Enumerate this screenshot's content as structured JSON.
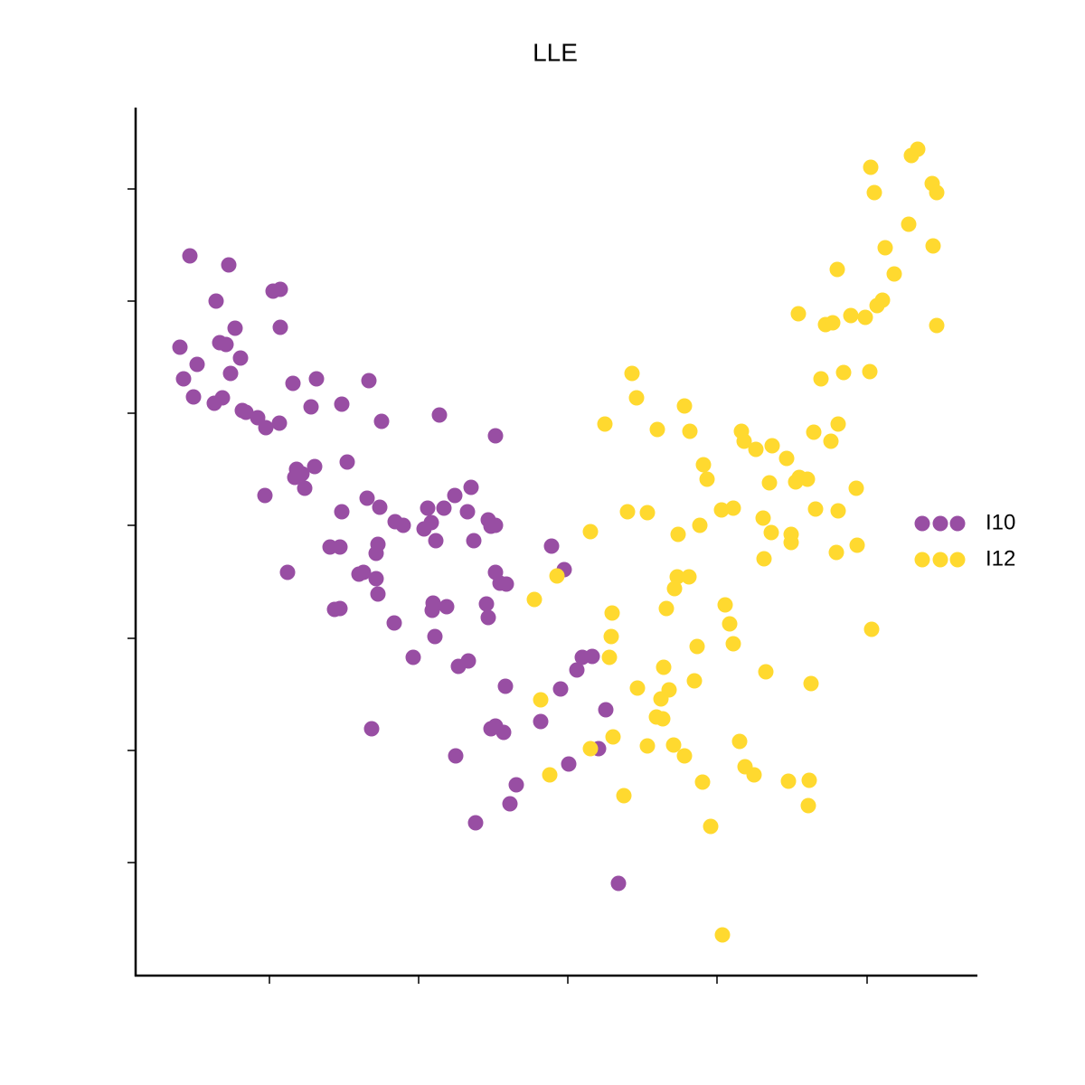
{
  "chart_data": {
    "type": "scatter",
    "title": "LLE",
    "xlim": [
      0,
      930
    ],
    "ylim": [
      0,
      959
    ],
    "xticks": [
      148,
      313,
      478,
      643,
      809
    ],
    "yticks": [
      125,
      249,
      373,
      498,
      622,
      746,
      870
    ],
    "grid": false,
    "legend": "right",
    "series": [
      {
        "name": "I10",
        "color": "#984ea3",
        "x": [
          60,
          103,
          89,
          152,
          160,
          160,
          110,
          49,
          93,
          100,
          116,
          68,
          53,
          105,
          64,
          87,
          96,
          118,
          122,
          135,
          144,
          159,
          174,
          200,
          194,
          228,
          258,
          272,
          336,
          398,
          234,
          178,
          176,
          184,
          198,
          187,
          143,
          256,
          270,
          228,
          323,
          341,
          353,
          371,
          367,
          390,
          398,
          287,
          296,
          319,
          327,
          332,
          374,
          393,
          215,
          226,
          268,
          266,
          168,
          247,
          252,
          266,
          268,
          460,
          474,
          398,
          403,
          410,
          220,
          226,
          286,
          329,
          328,
          344,
          388,
          390,
          331,
          307,
          357,
          368,
          409,
          470,
          494,
          505,
          488,
          448,
          520,
          512,
          393,
          398,
          407,
          261,
          354,
          479,
          421,
          414,
          376,
          534
        ],
        "values": [
          796,
          786,
          746,
          757,
          759,
          717,
          716,
          695,
          700,
          698,
          683,
          676,
          660,
          666,
          640,
          633,
          639,
          625,
          623,
          617,
          606,
          611,
          655,
          660,
          629,
          632,
          658,
          613,
          620,
          597,
          568,
          560,
          551,
          555,
          563,
          539,
          531,
          528,
          518,
          513,
          517,
          517,
          531,
          540,
          513,
          504,
          498,
          502,
          498,
          494,
          501,
          481,
          481,
          497,
          474,
          474,
          477,
          467,
          446,
          444,
          446,
          439,
          422,
          475,
          449,
          446,
          434,
          433,
          405,
          406,
          390,
          412,
          404,
          408,
          411,
          396,
          375,
          352,
          342,
          348,
          320,
          317,
          352,
          353,
          338,
          281,
          294,
          251,
          273,
          276,
          269,
          273,
          243,
          234,
          211,
          190,
          169,
          102
        ]
      },
      {
        "name": "I12",
        "color": "#ffd92f",
        "x": [
          813,
          858,
          865,
          817,
          881,
          886,
          855,
          829,
          882,
          839,
          776,
          826,
          820,
          733,
          763,
          771,
          791,
          807,
          886,
          812,
          783,
          758,
          549,
          554,
          607,
          519,
          577,
          613,
          670,
          673,
          686,
          704,
          720,
          777,
          769,
          750,
          628,
          632,
          701,
          734,
          743,
          730,
          797,
          544,
          566,
          648,
          661,
          694,
          624,
          600,
          703,
          725,
          725,
          752,
          777,
          798,
          775,
          695,
          503,
          599,
          612,
          596,
          466,
          441,
          587,
          652,
          657,
          527,
          526,
          814,
          661,
          621,
          524,
          584,
          618,
          697,
          747,
          555,
          590,
          581,
          448,
          576,
          583,
          528,
          503,
          566,
          595,
          607,
          668,
          674,
          684,
          722,
          745,
          627,
          458,
          540,
          744,
          636,
          649
        ],
        "values": [
          894,
          907,
          914,
          866,
          876,
          866,
          831,
          805,
          807,
          776,
          781,
          747,
          741,
          732,
          720,
          722,
          730,
          728,
          719,
          668,
          667,
          660,
          666,
          639,
          630,
          610,
          604,
          602,
          602,
          591,
          582,
          586,
          572,
          610,
          591,
          601,
          565,
          549,
          545,
          551,
          549,
          546,
          539,
          513,
          512,
          515,
          517,
          506,
          498,
          488,
          490,
          488,
          479,
          516,
          514,
          476,
          468,
          461,
          491,
          441,
          441,
          428,
          442,
          416,
          406,
          410,
          389,
          401,
          375,
          383,
          367,
          364,
          352,
          341,
          326,
          336,
          323,
          318,
          316,
          306,
          305,
          286,
          284,
          264,
          251,
          254,
          255,
          243,
          259,
          231,
          222,
          215,
          216,
          214,
          222,
          199,
          188,
          165,
          45
        ]
      }
    ]
  }
}
